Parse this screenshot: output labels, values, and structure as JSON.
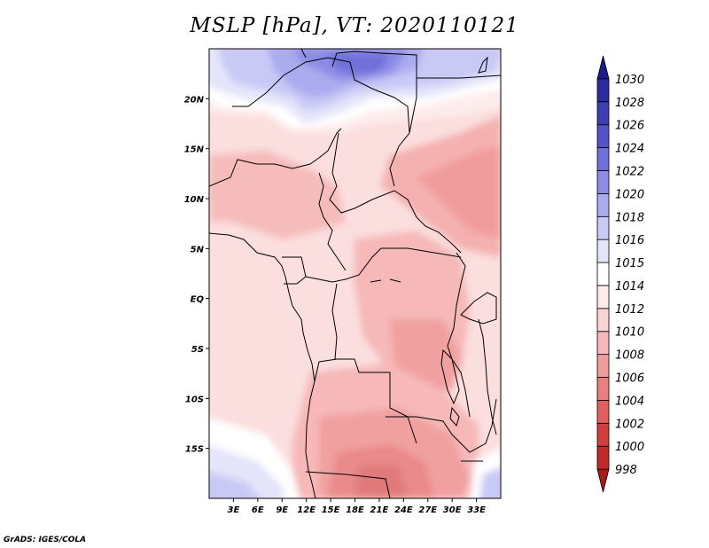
{
  "title": "MSLP [hPa], VT: 2020110121",
  "credit": "GrADS: IGES/COLA",
  "map": {
    "lon_range": [
      0,
      36
    ],
    "lat_range": [
      -20,
      25
    ],
    "lon_ticks": [
      "3E",
      "6E",
      "9E",
      "12E",
      "15E",
      "18E",
      "21E",
      "24E",
      "27E",
      "30E",
      "33E"
    ],
    "lat_ticks": [
      "20N",
      "15N",
      "10N",
      "5N",
      "EQ",
      "5S",
      "10S",
      "15S"
    ]
  },
  "colorbar": {
    "levels": [
      "998",
      "1000",
      "1002",
      "1004",
      "1006",
      "1008",
      "1010",
      "1012",
      "1014",
      "1015",
      "1016",
      "1018",
      "1020",
      "1022",
      "1024",
      "1026",
      "1028",
      "1030"
    ],
    "colors": [
      "#a51c1c",
      "#c02a2a",
      "#d43d3d",
      "#e25f5f",
      "#ea7f7f",
      "#f19c9c",
      "#f6b8b8",
      "#fad4d4",
      "#fdeaea",
      "#ffffff",
      "#e4e4fa",
      "#c9c9f6",
      "#ababf0",
      "#8c8ce6",
      "#6f6fd9",
      "#5454c8",
      "#3d3db5",
      "#2b2b9e",
      "#1c1c88"
    ]
  }
}
